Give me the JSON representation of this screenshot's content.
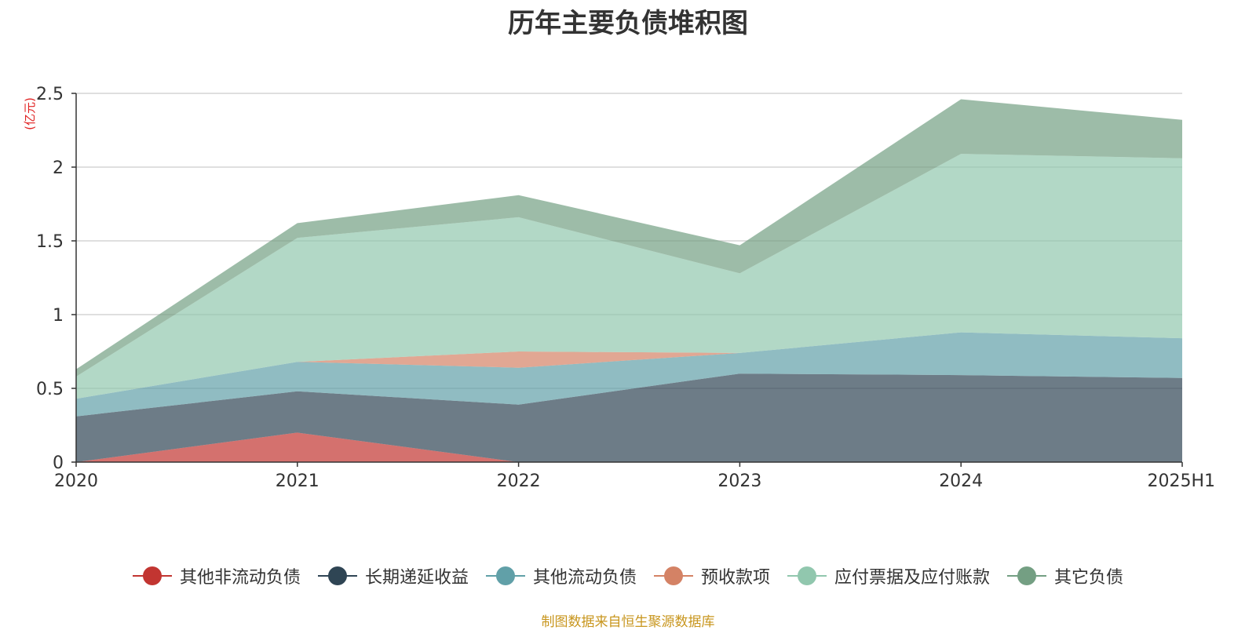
{
  "chart_data": {
    "type": "area",
    "stacked": true,
    "title": "历年主要负债堆积图",
    "unit_label": "(亿元)",
    "categories": [
      "2020",
      "2021",
      "2022",
      "2023",
      "2024",
      "2025H1"
    ],
    "y_ticks": [
      "0",
      "0.5",
      "1",
      "1.5",
      "2",
      "2.5"
    ],
    "ylim": [
      0,
      2.5
    ],
    "grid": true,
    "legend_position": "bottom",
    "series": [
      {
        "name": "其他非流动负债",
        "color": "#c23531",
        "values": [
          0.0,
          0.2,
          0.0,
          0.0,
          0.0,
          0.0
        ]
      },
      {
        "name": "长期递延收益",
        "color": "#2f4554",
        "values": [
          0.31,
          0.28,
          0.39,
          0.6,
          0.59,
          0.57
        ]
      },
      {
        "name": "其他流动负债",
        "color": "#61a0a8",
        "values": [
          0.12,
          0.2,
          0.25,
          0.14,
          0.29,
          0.27
        ]
      },
      {
        "name": "预收款项",
        "color": "#d48265",
        "values": [
          0.0,
          0.0,
          0.11,
          0.0,
          0.0,
          0.0
        ]
      },
      {
        "name": "应付票据及应付账款",
        "color": "#91c7ae",
        "values": [
          0.15,
          0.84,
          0.91,
          0.54,
          1.21,
          1.22
        ]
      },
      {
        "name": "其它负债",
        "color": "#749f83",
        "values": [
          0.05,
          0.1,
          0.15,
          0.19,
          0.37,
          0.26
        ]
      }
    ]
  },
  "source_note": "制图数据来自恒生聚源数据库"
}
